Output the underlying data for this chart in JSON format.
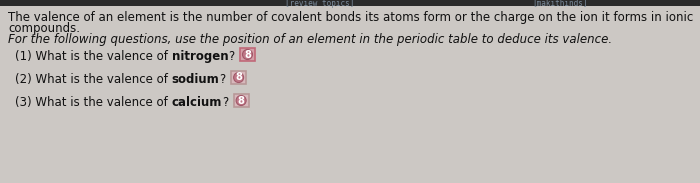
{
  "body_bg": "#ccc8c4",
  "header_bar_color": "#2a2a2a",
  "header_text1": "[review topics]",
  "header_text2": "[makithinds]",
  "intro_line1": "The valence of an element is the number of covalent bonds its atoms form or the charge on the ion it forms in ionic",
  "intro_line2": "compounds.",
  "intro_line3": "For the following questions, use the position of an element in the periodic table to deduce its valence.",
  "q1_prefix": "(1) What is the valence of ",
  "q1_bold": "nitrogen",
  "q1_suffix": "?",
  "q2_prefix": "(2) What is the valence of ",
  "q2_bold": "sodium",
  "q2_suffix": "?",
  "q3_prefix": "(3) What is the valence of ",
  "q3_bold": "calcium",
  "q3_suffix": "?",
  "answer_symbol": "8",
  "q1_box_face": "#d4a0a8",
  "q1_box_edge": "#c06878",
  "q2_box_face": "#d8b8bc",
  "q2_box_edge": "#b89898",
  "q3_box_face": "#d8b8bc",
  "q3_box_edge": "#b89898",
  "circle_face": "#c07888",
  "circle_edge": "#a05868",
  "text_color": "#111111",
  "font_size_body": 8.5,
  "font_size_small": 7.0,
  "font_size_header": 5.5
}
